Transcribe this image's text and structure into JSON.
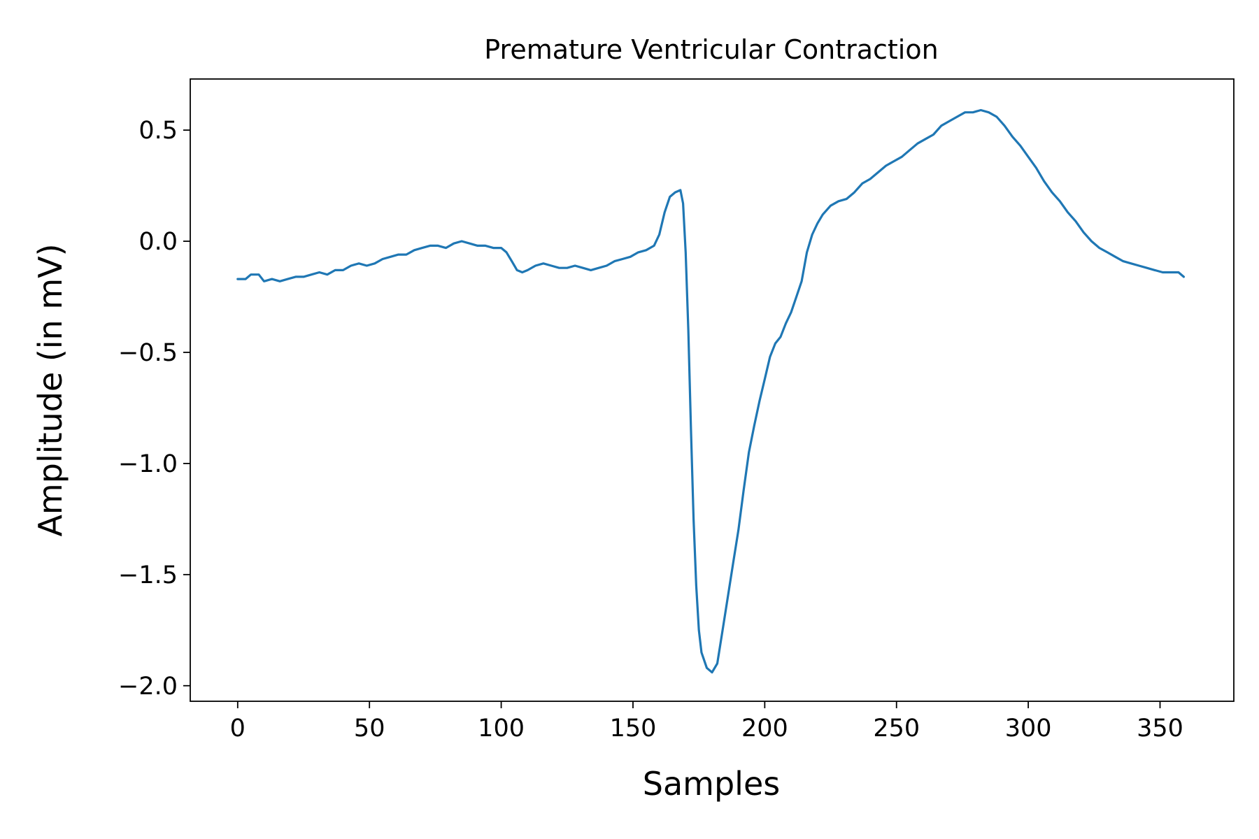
{
  "chart_data": {
    "type": "line",
    "title": "Premature Ventricular Contraction",
    "xlabel": "Samples",
    "ylabel": "Amplitude (in mV)",
    "xlim": [
      -18,
      378
    ],
    "ylim": [
      -2.07,
      0.73
    ],
    "xticks": [
      0,
      50,
      100,
      150,
      200,
      250,
      300,
      350
    ],
    "yticks": [
      0.5,
      0.0,
      -0.5,
      -1.0,
      -1.5,
      -2.0
    ],
    "ytick_labels": [
      "0.5",
      "0.0",
      "−0.5",
      "−1.0",
      "−1.5",
      "−2.0"
    ],
    "grid": false,
    "legend": "none",
    "series": [
      {
        "color": "#1f77b4",
        "points": [
          [
            0,
            -0.17
          ],
          [
            3,
            -0.17
          ],
          [
            5,
            -0.15
          ],
          [
            8,
            -0.15
          ],
          [
            10,
            -0.18
          ],
          [
            13,
            -0.17
          ],
          [
            16,
            -0.18
          ],
          [
            19,
            -0.17
          ],
          [
            22,
            -0.16
          ],
          [
            25,
            -0.16
          ],
          [
            28,
            -0.15
          ],
          [
            31,
            -0.14
          ],
          [
            34,
            -0.15
          ],
          [
            37,
            -0.13
          ],
          [
            40,
            -0.13
          ],
          [
            43,
            -0.11
          ],
          [
            46,
            -0.1
          ],
          [
            49,
            -0.11
          ],
          [
            52,
            -0.1
          ],
          [
            55,
            -0.08
          ],
          [
            58,
            -0.07
          ],
          [
            61,
            -0.06
          ],
          [
            64,
            -0.06
          ],
          [
            67,
            -0.04
          ],
          [
            70,
            -0.03
          ],
          [
            73,
            -0.02
          ],
          [
            76,
            -0.02
          ],
          [
            79,
            -0.03
          ],
          [
            82,
            -0.01
          ],
          [
            85,
            0.0
          ],
          [
            88,
            -0.01
          ],
          [
            91,
            -0.02
          ],
          [
            94,
            -0.02
          ],
          [
            97,
            -0.03
          ],
          [
            100,
            -0.03
          ],
          [
            102,
            -0.05
          ],
          [
            104,
            -0.09
          ],
          [
            106,
            -0.13
          ],
          [
            108,
            -0.14
          ],
          [
            110,
            -0.13
          ],
          [
            113,
            -0.11
          ],
          [
            116,
            -0.1
          ],
          [
            119,
            -0.11
          ],
          [
            122,
            -0.12
          ],
          [
            125,
            -0.12
          ],
          [
            128,
            -0.11
          ],
          [
            131,
            -0.12
          ],
          [
            134,
            -0.13
          ],
          [
            137,
            -0.12
          ],
          [
            140,
            -0.11
          ],
          [
            143,
            -0.09
          ],
          [
            146,
            -0.08
          ],
          [
            149,
            -0.07
          ],
          [
            152,
            -0.05
          ],
          [
            155,
            -0.04
          ],
          [
            158,
            -0.02
          ],
          [
            160,
            0.03
          ],
          [
            162,
            0.13
          ],
          [
            164,
            0.2
          ],
          [
            166,
            0.22
          ],
          [
            168,
            0.23
          ],
          [
            169,
            0.17
          ],
          [
            170,
            -0.05
          ],
          [
            171,
            -0.4
          ],
          [
            172,
            -0.85
          ],
          [
            173,
            -1.25
          ],
          [
            174,
            -1.55
          ],
          [
            175,
            -1.75
          ],
          [
            176,
            -1.85
          ],
          [
            178,
            -1.92
          ],
          [
            180,
            -1.94
          ],
          [
            182,
            -1.9
          ],
          [
            184,
            -1.75
          ],
          [
            186,
            -1.6
          ],
          [
            188,
            -1.45
          ],
          [
            190,
            -1.3
          ],
          [
            192,
            -1.12
          ],
          [
            194,
            -0.95
          ],
          [
            196,
            -0.83
          ],
          [
            198,
            -0.72
          ],
          [
            200,
            -0.62
          ],
          [
            202,
            -0.52
          ],
          [
            204,
            -0.46
          ],
          [
            206,
            -0.43
          ],
          [
            208,
            -0.37
          ],
          [
            210,
            -0.32
          ],
          [
            212,
            -0.25
          ],
          [
            214,
            -0.18
          ],
          [
            216,
            -0.05
          ],
          [
            218,
            0.03
          ],
          [
            220,
            0.08
          ],
          [
            222,
            0.12
          ],
          [
            225,
            0.16
          ],
          [
            228,
            0.18
          ],
          [
            231,
            0.19
          ],
          [
            234,
            0.22
          ],
          [
            237,
            0.26
          ],
          [
            240,
            0.28
          ],
          [
            243,
            0.31
          ],
          [
            246,
            0.34
          ],
          [
            249,
            0.36
          ],
          [
            252,
            0.38
          ],
          [
            255,
            0.41
          ],
          [
            258,
            0.44
          ],
          [
            261,
            0.46
          ],
          [
            264,
            0.48
          ],
          [
            267,
            0.52
          ],
          [
            270,
            0.54
          ],
          [
            273,
            0.56
          ],
          [
            276,
            0.58
          ],
          [
            279,
            0.58
          ],
          [
            282,
            0.59
          ],
          [
            285,
            0.58
          ],
          [
            288,
            0.56
          ],
          [
            291,
            0.52
          ],
          [
            294,
            0.47
          ],
          [
            297,
            0.43
          ],
          [
            300,
            0.38
          ],
          [
            303,
            0.33
          ],
          [
            306,
            0.27
          ],
          [
            309,
            0.22
          ],
          [
            312,
            0.18
          ],
          [
            315,
            0.13
          ],
          [
            318,
            0.09
          ],
          [
            321,
            0.04
          ],
          [
            324,
            0.0
          ],
          [
            327,
            -0.03
          ],
          [
            330,
            -0.05
          ],
          [
            333,
            -0.07
          ],
          [
            336,
            -0.09
          ],
          [
            339,
            -0.1
          ],
          [
            342,
            -0.11
          ],
          [
            345,
            -0.12
          ],
          [
            348,
            -0.13
          ],
          [
            351,
            -0.14
          ],
          [
            354,
            -0.14
          ],
          [
            357,
            -0.14
          ],
          [
            359,
            -0.16
          ]
        ]
      }
    ]
  }
}
